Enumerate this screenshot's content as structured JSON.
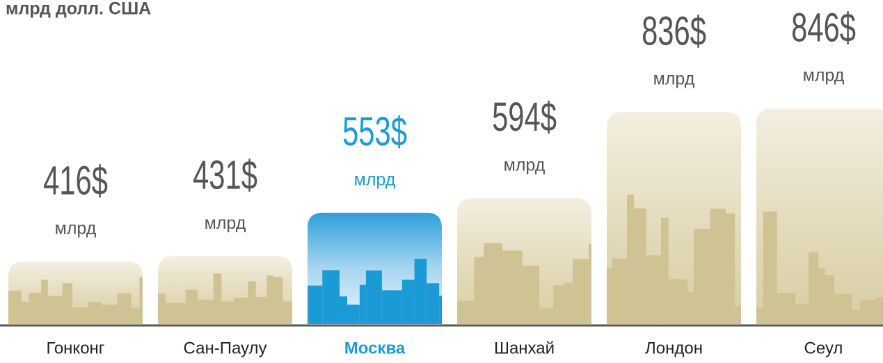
{
  "chart_data": {
    "type": "bar",
    "title": "млрд долл. США",
    "categories": [
      "Гонконг",
      "Сан-Паулу",
      "Москва",
      "Шанхай",
      "Лондон",
      "Сеул"
    ],
    "values": [
      416,
      431,
      553,
      594,
      836,
      846
    ],
    "value_labels": [
      "416$",
      "431$",
      "553$",
      "594$",
      "836$",
      "846$"
    ],
    "unit": "млрд",
    "color": "#d6cb9f",
    "highlight": "Москва",
    "highlight_color": "#1b9ad6",
    "label_color": "#555555"
  }
}
